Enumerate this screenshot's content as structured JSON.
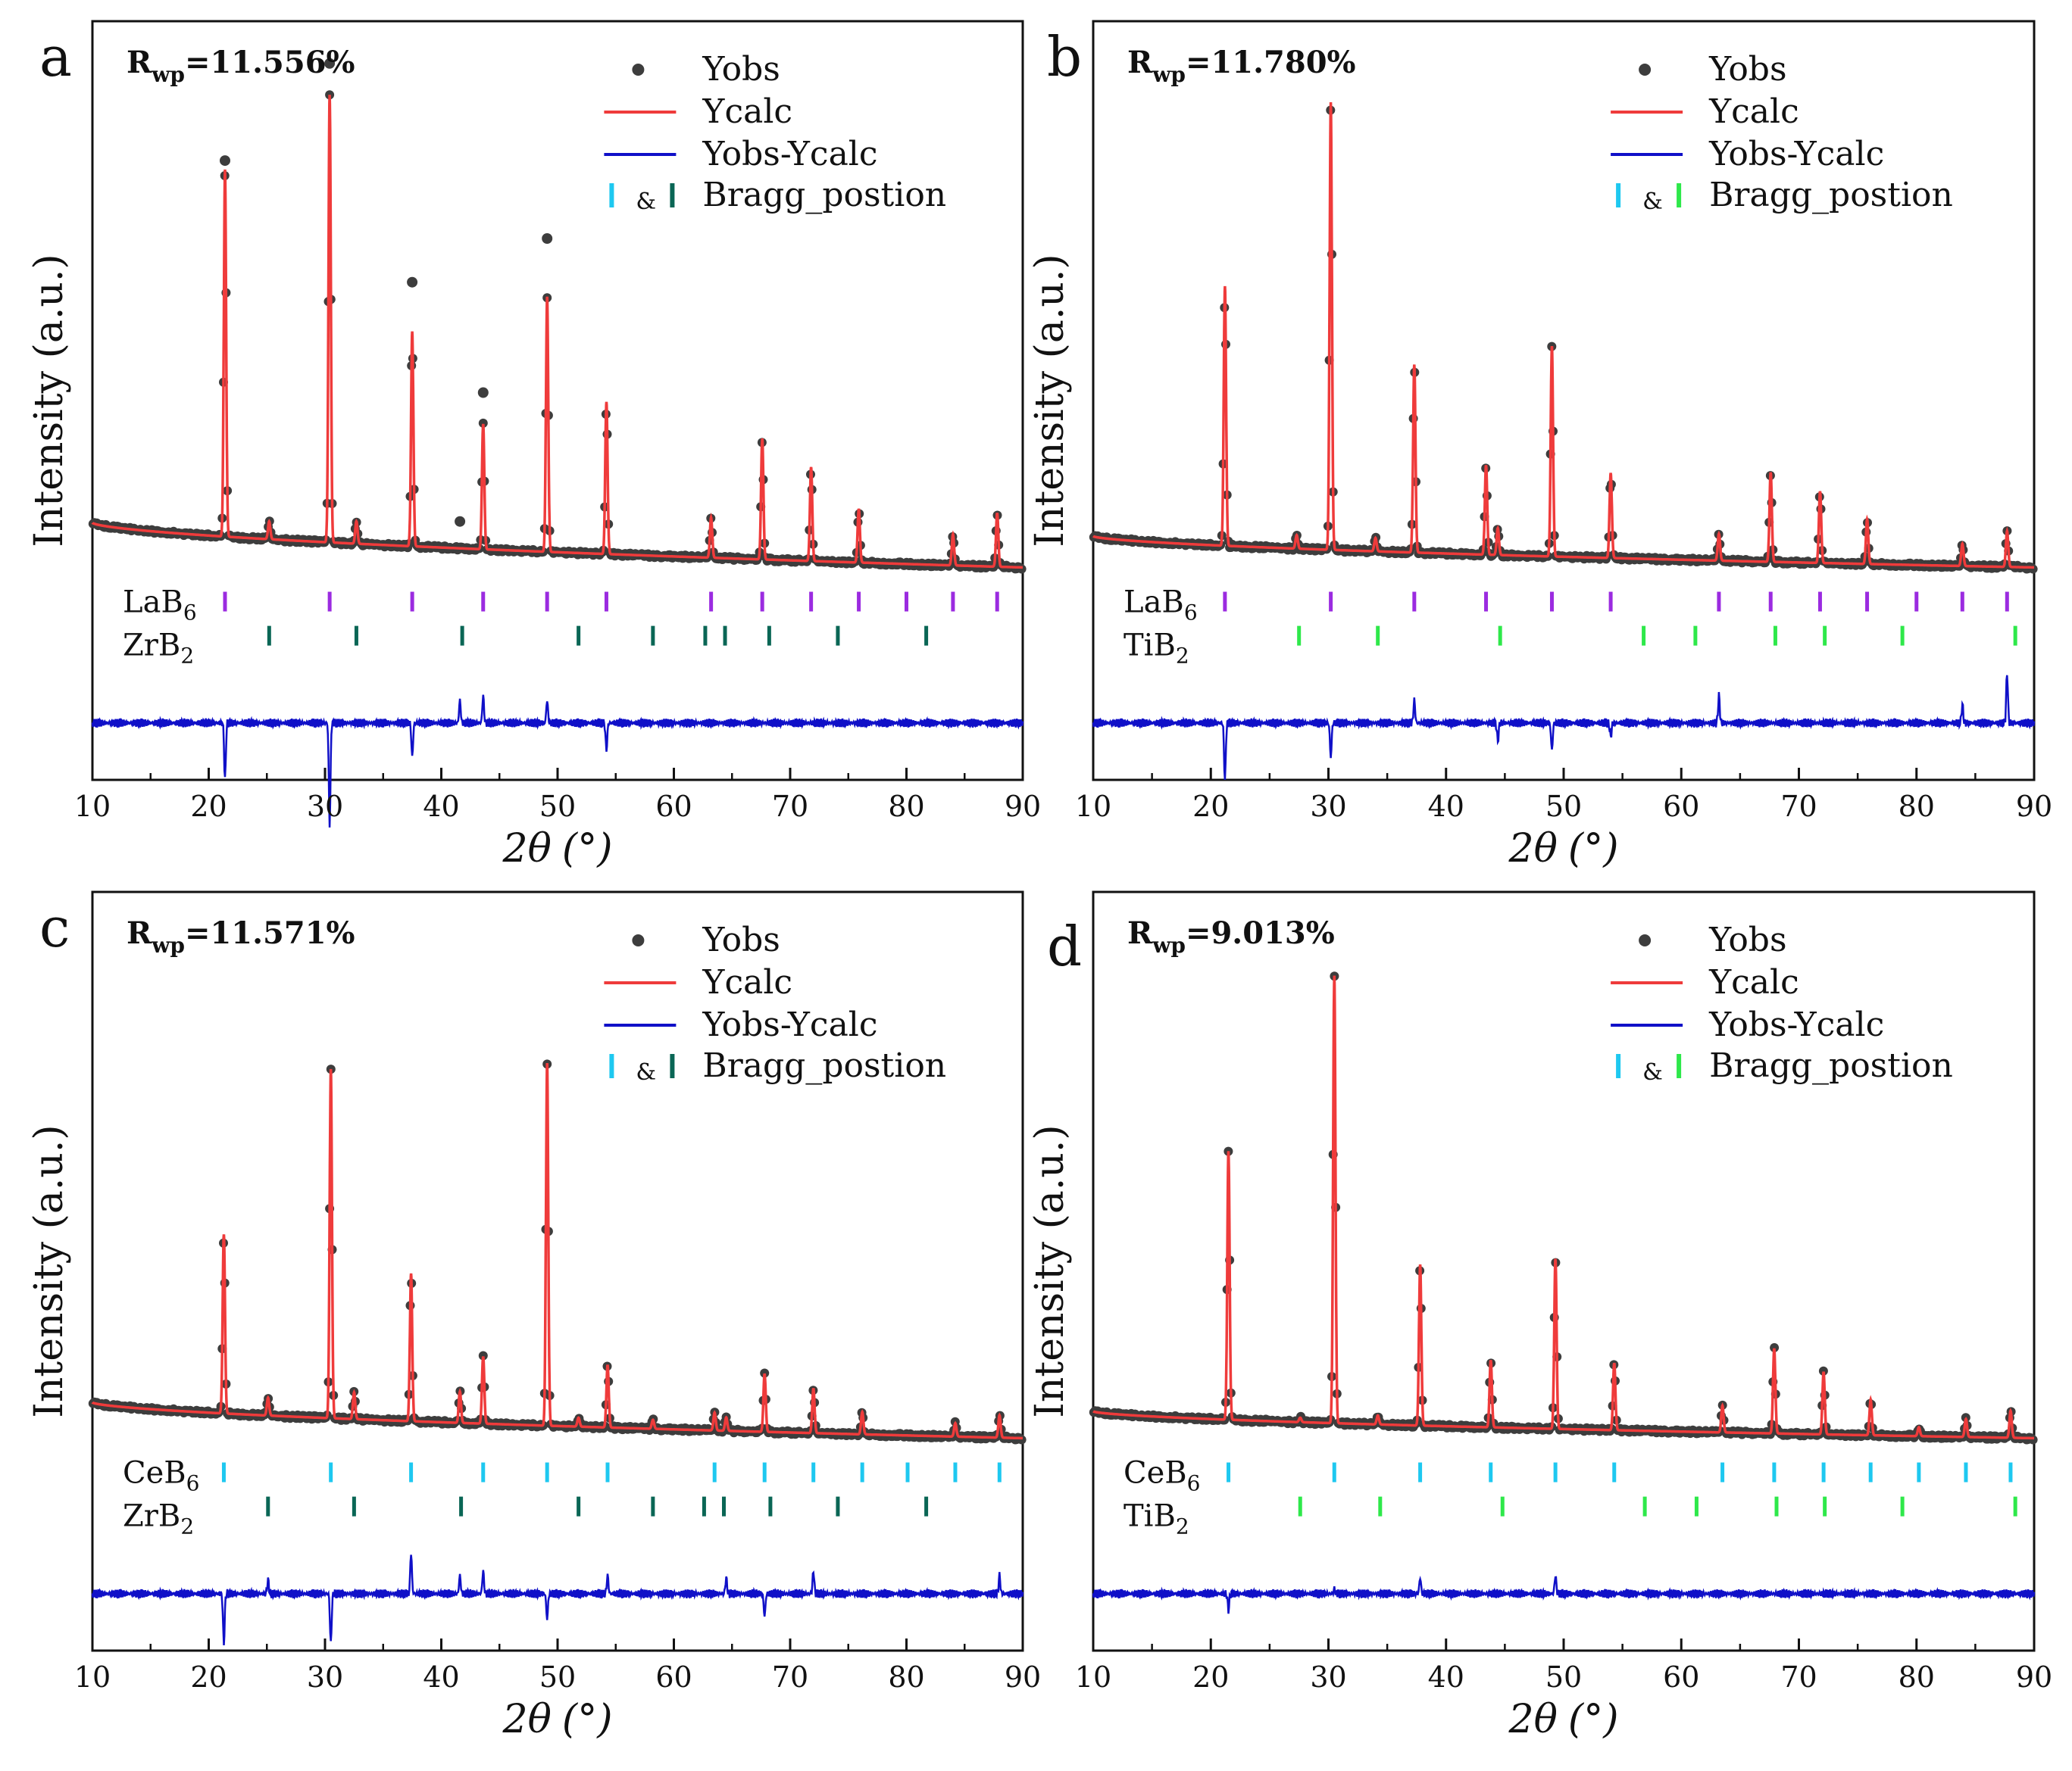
{
  "chart_data": [
    {
      "panel": "a",
      "rwp_sub": "wp",
      "rwp_value": "=11.556%",
      "xlabel_prefix": "2",
      "xlabel_theta": "θ",
      "xlabel_unit": "(°)",
      "ylabel": "Intensity (a.u.)",
      "xlim": [
        10,
        90
      ],
      "xticks": [
        "10",
        "20",
        "30",
        "40",
        "50",
        "60",
        "70",
        "80",
        "90"
      ],
      "legend": {
        "obs": "Yobs",
        "calc": "Ycalc",
        "diff": "Yobs-Ycalc",
        "amp": "&",
        "bragg": "Bragg_postion"
      },
      "colors": {
        "obs": "#3d3d3d",
        "calc": "#ef3b3b",
        "diff": "#1010c8",
        "bragg1": "#1ec8f0",
        "bragg2": "#0a6655",
        "legend_bragg2": "#0a6655",
        "tick1": "#9b2be0",
        "tick2": "#0a6655"
      },
      "background": {
        "start": 0.1,
        "end": 0.0
      },
      "peaks": [
        [
          21.4,
          0.82
        ],
        [
          25.2,
          0.04
        ],
        [
          30.4,
          1.0
        ],
        [
          32.7,
          0.05
        ],
        [
          37.5,
          0.48
        ],
        [
          43.6,
          0.28
        ],
        [
          49.1,
          0.57
        ],
        [
          54.2,
          0.34
        ],
        [
          63.2,
          0.09
        ],
        [
          67.6,
          0.27
        ],
        [
          71.8,
          0.21
        ],
        [
          75.9,
          0.12
        ],
        [
          84.0,
          0.07
        ],
        [
          87.8,
          0.12
        ]
      ],
      "outliers": [
        [
          21.4,
          0.84
        ],
        [
          30.4,
          1.26
        ],
        [
          30.4,
          1.07
        ],
        [
          37.5,
          0.59
        ],
        [
          43.6,
          0.35
        ],
        [
          49.1,
          0.7
        ],
        [
          41.6,
          0.06
        ]
      ],
      "diff_spikes": [
        [
          21.4,
          -0.25
        ],
        [
          30.4,
          -0.45
        ],
        [
          37.5,
          -0.15
        ],
        [
          41.6,
          0.1
        ],
        [
          43.6,
          0.12
        ],
        [
          49.1,
          0.1
        ],
        [
          54.2,
          -0.12
        ]
      ],
      "phase1": {
        "label": "LaB",
        "sub": "6",
        "positions": [
          21.4,
          30.4,
          37.5,
          43.6,
          49.1,
          54.2,
          63.2,
          67.6,
          71.8,
          75.9,
          80.0,
          84.0,
          87.8
        ]
      },
      "phase2": {
        "label": "ZrB",
        "sub": "2",
        "positions": [
          25.2,
          32.7,
          41.8,
          51.8,
          58.2,
          62.7,
          64.4,
          68.2,
          74.1,
          81.7
        ]
      }
    },
    {
      "panel": "b",
      "rwp_sub": "wp",
      "rwp_value": "=11.780%",
      "xlabel_prefix": "2",
      "xlabel_theta": "θ",
      "xlabel_unit": "(°)",
      "ylabel": "Intensity (a.u.)",
      "xlim": [
        10,
        90
      ],
      "xticks": [
        "10",
        "20",
        "30",
        "40",
        "50",
        "60",
        "70",
        "80",
        "90"
      ],
      "legend": {
        "obs": "Yobs",
        "calc": "Ycalc",
        "diff": "Yobs-Ycalc",
        "amp": "&",
        "bragg": "Bragg_postion"
      },
      "colors": {
        "obs": "#3d3d3d",
        "calc": "#ef3b3b",
        "diff": "#1010c8",
        "bragg1": "#1ec8f0",
        "bragg2": "#2ee84a",
        "legend_bragg2": "#2ee84a",
        "tick1": "#9b2be0",
        "tick2": "#2ee84a"
      },
      "background": {
        "start": 0.07,
        "end": 0.0
      },
      "peaks": [
        [
          21.2,
          0.58
        ],
        [
          27.3,
          0.03
        ],
        [
          30.2,
          1.0
        ],
        [
          34.0,
          0.03
        ],
        [
          37.3,
          0.42
        ],
        [
          43.4,
          0.2
        ],
        [
          44.4,
          0.06
        ],
        [
          49.0,
          0.47
        ],
        [
          54.0,
          0.19
        ],
        [
          63.2,
          0.06
        ],
        [
          67.6,
          0.2
        ],
        [
          71.8,
          0.16
        ],
        [
          75.8,
          0.1
        ],
        [
          83.9,
          0.05
        ],
        [
          87.7,
          0.08
        ]
      ],
      "outliers": [],
      "diff_spikes": [
        [
          21.2,
          -0.25
        ],
        [
          30.2,
          -0.15
        ],
        [
          37.3,
          0.1
        ],
        [
          44.4,
          -0.08
        ],
        [
          49.0,
          -0.12
        ],
        [
          54.0,
          -0.06
        ],
        [
          63.2,
          0.12
        ],
        [
          83.9,
          0.08
        ],
        [
          87.7,
          0.22
        ]
      ],
      "phase1": {
        "label": "LaB",
        "sub": "6",
        "positions": [
          21.2,
          30.2,
          37.3,
          43.4,
          49.0,
          54.0,
          63.2,
          67.6,
          71.8,
          75.8,
          80.0,
          83.9,
          87.7
        ]
      },
      "phase2": {
        "label": "TiB",
        "sub": "2",
        "positions": [
          27.5,
          34.2,
          44.6,
          56.8,
          61.2,
          68.0,
          72.2,
          78.8,
          88.4
        ]
      }
    },
    {
      "panel": "c",
      "rwp_sub": "wp",
      "rwp_value": "=11.571%",
      "xlabel_prefix": "2",
      "xlabel_theta": "θ",
      "xlabel_unit": "(°)",
      "ylabel": "Intensity (a.u.)",
      "xlim": [
        10,
        90
      ],
      "xticks": [
        "10",
        "20",
        "30",
        "40",
        "50",
        "60",
        "70",
        "80",
        "90"
      ],
      "legend": {
        "obs": "Yobs",
        "calc": "Ycalc",
        "diff": "Yobs-Ycalc",
        "amp": "&",
        "bragg": "Bragg_postion"
      },
      "colors": {
        "obs": "#3d3d3d",
        "calc": "#ef3b3b",
        "diff": "#1010c8",
        "bragg1": "#1ec8f0",
        "bragg2": "#0a6655",
        "legend_bragg2": "#0a6655",
        "tick1": "#1ec8f0",
        "tick2": "#0a6655"
      },
      "background": {
        "start": 0.08,
        "end": 0.0
      },
      "peaks": [
        [
          21.3,
          0.4
        ],
        [
          25.1,
          0.04
        ],
        [
          30.5,
          0.78
        ],
        [
          32.5,
          0.06
        ],
        [
          37.4,
          0.33
        ],
        [
          41.6,
          0.07
        ],
        [
          43.6,
          0.15
        ],
        [
          49.1,
          0.81
        ],
        [
          51.8,
          0.02
        ],
        [
          54.3,
          0.14
        ],
        [
          58.2,
          0.02
        ],
        [
          63.5,
          0.04
        ],
        [
          64.5,
          0.03
        ],
        [
          67.8,
          0.13
        ],
        [
          72.0,
          0.1
        ],
        [
          76.2,
          0.05
        ],
        [
          84.2,
          0.03
        ],
        [
          88.0,
          0.05
        ]
      ],
      "outliers": [],
      "diff_spikes": [
        [
          21.3,
          -0.22
        ],
        [
          25.1,
          0.06
        ],
        [
          30.5,
          -0.22
        ],
        [
          37.4,
          0.18
        ],
        [
          41.6,
          0.08
        ],
        [
          43.6,
          0.1
        ],
        [
          49.1,
          0.24
        ],
        [
          49.1,
          -0.35
        ],
        [
          54.3,
          0.08
        ],
        [
          64.5,
          0.07
        ],
        [
          67.8,
          -0.1
        ],
        [
          72.0,
          0.1
        ],
        [
          88.0,
          0.08
        ]
      ],
      "phase1": {
        "label": "CeB",
        "sub": "6",
        "positions": [
          21.3,
          30.5,
          37.4,
          43.6,
          49.1,
          54.3,
          63.5,
          67.8,
          72.0,
          76.2,
          80.1,
          84.2,
          88.0
        ]
      },
      "phase2": {
        "label": "ZrB",
        "sub": "2",
        "positions": [
          25.1,
          32.5,
          41.7,
          51.8,
          58.2,
          62.6,
          64.3,
          68.3,
          74.1,
          81.7
        ]
      }
    },
    {
      "panel": "d",
      "rwp_sub": "wp",
      "rwp_value": "=9.013%",
      "xlabel_prefix": "2",
      "xlabel_theta": "θ",
      "xlabel_unit": "(°)",
      "ylabel": "Intensity (a.u.)",
      "xlim": [
        10,
        90
      ],
      "xticks": [
        "10",
        "20",
        "30",
        "40",
        "50",
        "60",
        "70",
        "80",
        "90"
      ],
      "legend": {
        "obs": "Yobs",
        "calc": "Ycalc",
        "diff": "Yobs-Ycalc",
        "amp": "&",
        "bragg": "Bragg_postion"
      },
      "colors": {
        "obs": "#3d3d3d",
        "calc": "#ef3b3b",
        "diff": "#1010c8",
        "bragg1": "#1ec8f0",
        "bragg2": "#2ee84a",
        "legend_bragg2": "#2ee84a",
        "tick1": "#1ec8f0",
        "tick2": "#2ee84a"
      },
      "background": {
        "start": 0.06,
        "end": 0.0
      },
      "peaks": [
        [
          21.5,
          0.6
        ],
        [
          27.6,
          0.01
        ],
        [
          30.5,
          1.0
        ],
        [
          34.2,
          0.02
        ],
        [
          37.8,
          0.36
        ],
        [
          43.8,
          0.15
        ],
        [
          49.3,
          0.38
        ],
        [
          54.3,
          0.15
        ],
        [
          63.5,
          0.06
        ],
        [
          67.9,
          0.19
        ],
        [
          72.1,
          0.14
        ],
        [
          76.1,
          0.08
        ],
        [
          80.2,
          0.02
        ],
        [
          84.2,
          0.04
        ],
        [
          88.0,
          0.06
        ]
      ],
      "outliers": [],
      "diff_spikes": [
        [
          21.5,
          -0.25
        ],
        [
          21.5,
          0.18
        ],
        [
          30.5,
          0.22
        ],
        [
          30.5,
          -0.2
        ],
        [
          37.8,
          0.07
        ],
        [
          49.3,
          0.08
        ]
      ],
      "phase1": {
        "label": "CeB",
        "sub": "6",
        "positions": [
          21.5,
          30.5,
          37.8,
          43.8,
          49.3,
          54.3,
          63.5,
          67.9,
          72.1,
          76.1,
          80.2,
          84.2,
          88.0
        ]
      },
      "phase2": {
        "label": "TiB",
        "sub": "2",
        "positions": [
          27.6,
          34.4,
          44.8,
          56.9,
          61.3,
          68.1,
          72.2,
          78.8,
          88.4
        ]
      }
    }
  ]
}
